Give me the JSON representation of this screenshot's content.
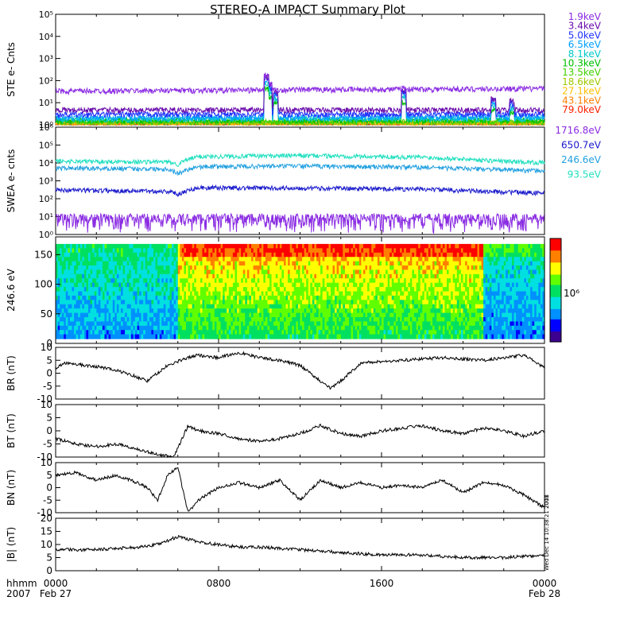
{
  "title": "STEREO-A IMPACT Summary Plot",
  "colors": {
    "ste": [
      "#8a2be2",
      "#6a0dad",
      "#2233ff",
      "#00a0ff",
      "#00c8c8",
      "#00c000",
      "#40d000",
      "#a0c800",
      "#ffc000",
      "#ff8000",
      "#ff2000"
    ],
    "swea": [
      "#8a2be2",
      "#1a1acc",
      "#22a0e0",
      "#22e0c0"
    ]
  },
  "chart_data": [
    {
      "type": "line",
      "panel": "STE electrons",
      "ylabel": "STE e- Cnts",
      "yscale": "log",
      "ylim": [
        1,
        100000
      ],
      "yticks": [
        {
          "v": 1,
          "label": "10⁰"
        },
        {
          "v": 10,
          "label": "10¹"
        },
        {
          "v": 100,
          "label": "10²"
        },
        {
          "v": 1000,
          "label": "10³"
        },
        {
          "v": 10000,
          "label": "10⁴"
        },
        {
          "v": 100000,
          "label": "10⁵"
        }
      ],
      "legend": [
        "1.9keV",
        "3.4keV",
        "5.0keV",
        "6.5keV",
        "8.1keV",
        "10.3keV",
        "13.5keV",
        "18.6keV",
        "27.1keV",
        "43.1keV",
        "79.0keV"
      ],
      "legend_position": "right",
      "series": [
        {
          "name": "1.9keV",
          "levels": [
            [
              0,
              32
            ],
            [
              24,
              42
            ]
          ]
        },
        {
          "name": "3.4keV",
          "levels": [
            [
              0,
              4.5
            ],
            [
              24,
              4.5
            ]
          ]
        },
        {
          "name": "5.0keV",
          "levels": [
            [
              0,
              2.8
            ],
            [
              24,
              3
            ]
          ]
        },
        {
          "name": "6.5keV",
          "levels": [
            [
              0,
              2.0
            ],
            [
              24,
              2.2
            ]
          ]
        },
        {
          "name": "8.1keV",
          "levels": [
            [
              0,
              1.7
            ],
            [
              24,
              1.8
            ]
          ]
        },
        {
          "name": "10.3keV",
          "levels": [
            [
              0,
              1.5
            ],
            [
              24,
              1.5
            ]
          ]
        },
        {
          "name": "13.5keV",
          "levels": [
            [
              0,
              1.3
            ],
            [
              24,
              1.3
            ]
          ]
        },
        {
          "name": "18.6keV",
          "levels": [
            [
              0,
              1.2
            ],
            [
              24,
              1.2
            ]
          ]
        },
        {
          "name": "27.1keV",
          "levels": [
            [
              0,
              1.1
            ],
            [
              24,
              1.1
            ]
          ]
        },
        {
          "name": "43.1keV",
          "levels": [
            [
              0,
              1.05
            ],
            [
              24,
              1.05
            ]
          ]
        },
        {
          "name": "79.0keV",
          "levels": [
            [
              0,
              1.0
            ],
            [
              24,
              1.0
            ]
          ]
        }
      ],
      "spikes": [
        {
          "x": 10.35,
          "y": 200
        },
        {
          "x": 10.5,
          "y": 80
        },
        {
          "x": 10.8,
          "y": 40
        },
        {
          "x": 17.1,
          "y": 50
        },
        {
          "x": 21.5,
          "y": 20
        },
        {
          "x": 22.4,
          "y": 15
        }
      ]
    },
    {
      "type": "line",
      "panel": "SWEA electrons",
      "ylabel": "SWEA e- cnts",
      "yscale": "log",
      "ylim": [
        1,
        1000000
      ],
      "yticks": [
        {
          "v": 1,
          "label": "10⁰"
        },
        {
          "v": 10,
          "label": "10¹"
        },
        {
          "v": 100,
          "label": "10²"
        },
        {
          "v": 1000,
          "label": "10³"
        },
        {
          "v": 10000,
          "label": "10⁴"
        },
        {
          "v": 100000,
          "label": "10⁵"
        },
        {
          "v": 1000000,
          "label": "10⁶"
        }
      ],
      "legend": [
        "1716.8eV",
        "650.7eV",
        "246.6eV",
        "93.5eV"
      ],
      "legend_position": "right",
      "series": [
        {
          "name": "1716.8eV",
          "levels": [
            [
              0,
              6
            ],
            [
              24,
              6
            ]
          ]
        },
        {
          "name": "650.7eV",
          "levels": [
            [
              0,
              300
            ],
            [
              5.5,
              250
            ],
            [
              6,
              170
            ],
            [
              7,
              400
            ],
            [
              12,
              380
            ],
            [
              18,
              330
            ],
            [
              21,
              250
            ],
            [
              24,
              200
            ]
          ]
        },
        {
          "name": "246.6eV",
          "levels": [
            [
              0,
              5000
            ],
            [
              5.5,
              4500
            ],
            [
              6,
              2500
            ],
            [
              7,
              6000
            ],
            [
              12,
              6500
            ],
            [
              18,
              5500
            ],
            [
              22,
              4000
            ],
            [
              24,
              3500
            ]
          ]
        },
        {
          "name": "93.5eV",
          "levels": [
            [
              0,
              12000
            ],
            [
              5.5,
              11000
            ],
            [
              6,
              8000
            ],
            [
              7,
              22000
            ],
            [
              12,
              25000
            ],
            [
              18,
              20000
            ],
            [
              22,
              12000
            ],
            [
              24,
              10000
            ]
          ]
        }
      ]
    },
    {
      "type": "heatmap",
      "panel": "SWEA pitch angle distribution",
      "ylabel": "246.6 eV",
      "ylim": [
        0,
        180
      ],
      "yticks": [
        0,
        50,
        100,
        150
      ],
      "colorbar_label": "10⁶",
      "colorscale": [
        "#3c0090",
        "#0000ff",
        "#0090ff",
        "#00e0e0",
        "#00e060",
        "#60ff00",
        "#ffff00",
        "#ff8000",
        "#ff0000"
      ]
    },
    {
      "type": "line",
      "panel": "BR",
      "ylabel": "BR (nT)",
      "ylim": [
        -10,
        10
      ],
      "yticks": [
        -10,
        -5,
        0,
        5,
        10
      ],
      "keypoints": [
        [
          0,
          2
        ],
        [
          0.5,
          4
        ],
        [
          1.5,
          3
        ],
        [
          2.5,
          2
        ],
        [
          3.5,
          0
        ],
        [
          4.5,
          -3
        ],
        [
          5.5,
          3
        ],
        [
          6.5,
          6
        ],
        [
          7,
          7
        ],
        [
          8,
          6
        ],
        [
          9,
          8
        ],
        [
          10,
          6
        ],
        [
          11,
          5
        ],
        [
          12,
          3
        ],
        [
          13.5,
          -6
        ],
        [
          14,
          -3
        ],
        [
          15,
          4
        ],
        [
          17,
          5
        ],
        [
          19,
          6
        ],
        [
          21,
          5
        ],
        [
          23,
          7
        ],
        [
          24,
          2
        ]
      ]
    },
    {
      "type": "line",
      "panel": "BT",
      "ylabel": "BT (nT)",
      "ylim": [
        -10,
        10
      ],
      "yticks": [
        -10,
        -5,
        0,
        5,
        10
      ],
      "keypoints": [
        [
          0,
          -3
        ],
        [
          1,
          -5
        ],
        [
          2,
          -6
        ],
        [
          3,
          -5
        ],
        [
          4,
          -7
        ],
        [
          5,
          -9
        ],
        [
          5.8,
          -10
        ],
        [
          6.5,
          2
        ],
        [
          7,
          0
        ],
        [
          8,
          -1
        ],
        [
          9,
          -3
        ],
        [
          10,
          -4
        ],
        [
          11,
          -3
        ],
        [
          12,
          -1
        ],
        [
          13,
          2
        ],
        [
          14,
          -1
        ],
        [
          15,
          -2
        ],
        [
          16,
          0
        ],
        [
          17,
          1
        ],
        [
          18,
          2
        ],
        [
          19,
          0
        ],
        [
          20,
          -1
        ],
        [
          21,
          1
        ],
        [
          22,
          0
        ],
        [
          23,
          -2
        ],
        [
          24,
          0
        ]
      ]
    },
    {
      "type": "line",
      "panel": "BN",
      "ylabel": "BN (nT)",
      "ylim": [
        -10,
        10
      ],
      "yticks": [
        -10,
        -5,
        0,
        5,
        10
      ],
      "keypoints": [
        [
          0,
          5
        ],
        [
          1,
          6
        ],
        [
          2,
          3
        ],
        [
          3,
          5
        ],
        [
          4,
          2
        ],
        [
          4.5,
          0
        ],
        [
          5,
          -5
        ],
        [
          5.5,
          5
        ],
        [
          6,
          8
        ],
        [
          6.5,
          -10
        ],
        [
          7,
          -5
        ],
        [
          8,
          0
        ],
        [
          9,
          2
        ],
        [
          10,
          0
        ],
        [
          11,
          3
        ],
        [
          12,
          -5
        ],
        [
          13,
          3
        ],
        [
          14,
          0
        ],
        [
          15,
          2
        ],
        [
          16,
          0
        ],
        [
          17,
          1
        ],
        [
          18,
          0
        ],
        [
          19,
          3
        ],
        [
          20,
          -2
        ],
        [
          21,
          2
        ],
        [
          22,
          1
        ],
        [
          23,
          -3
        ],
        [
          24,
          -8
        ]
      ]
    },
    {
      "type": "line",
      "panel": "|B|",
      "ylabel": "|B| (nT)",
      "ylim": [
        0,
        20
      ],
      "yticks": [
        0,
        5,
        10,
        15,
        20
      ],
      "keypoints": [
        [
          0,
          8
        ],
        [
          2,
          8
        ],
        [
          4,
          9
        ],
        [
          5,
          10
        ],
        [
          6,
          13
        ],
        [
          7,
          11
        ],
        [
          8,
          10
        ],
        [
          9,
          9
        ],
        [
          10,
          9
        ],
        [
          12,
          8
        ],
        [
          14,
          7
        ],
        [
          16,
          6
        ],
        [
          18,
          6
        ],
        [
          20,
          5
        ],
        [
          22,
          5
        ],
        [
          24,
          6
        ]
      ]
    }
  ],
  "xaxis": {
    "label_line1": "hhmm",
    "label_line2": "2007",
    "ticks": [
      {
        "x": 0,
        "label": "0000",
        "date": "Feb 27"
      },
      {
        "x": 8,
        "label": "0800",
        "date": ""
      },
      {
        "x": 16,
        "label": "1600",
        "date": ""
      },
      {
        "x": 24,
        "label": "0000",
        "date": "Feb 28"
      }
    ],
    "range": [
      0,
      24
    ]
  },
  "side_stamps": [
    "2008",
    "Wed Dec 14 10:38:21 2011"
  ]
}
